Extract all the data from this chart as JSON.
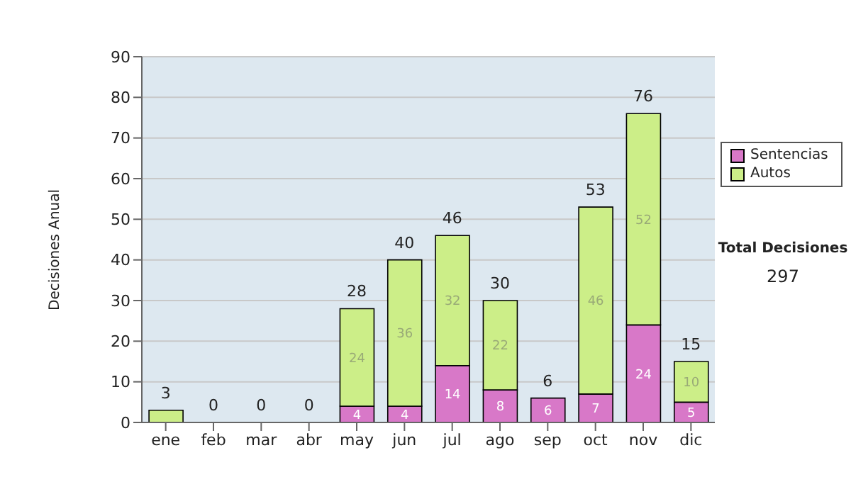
{
  "chart_data": {
    "type": "bar",
    "ylabel": "Decisiones Anual",
    "categories": [
      "ene",
      "feb",
      "mar",
      "abr",
      "may",
      "jun",
      "jul",
      "ago",
      "sep",
      "oct",
      "nov",
      "dic"
    ],
    "stacked": true,
    "series": [
      {
        "name": "Sentencias",
        "color": "#d878c8",
        "values": [
          0,
          0,
          0,
          0,
          4,
          4,
          14,
          8,
          6,
          7,
          24,
          5
        ],
        "value_labels": [
          null,
          null,
          null,
          null,
          "4",
          "4",
          "14",
          "8",
          "6",
          "7",
          "24",
          "5"
        ]
      },
      {
        "name": "Autos",
        "color": "#ccee88",
        "values": [
          3,
          0,
          0,
          0,
          24,
          36,
          32,
          22,
          0,
          46,
          52,
          10
        ],
        "value_labels": [
          null,
          null,
          null,
          null,
          "24",
          "36",
          "32",
          "22",
          null,
          "46",
          "52",
          "10"
        ]
      }
    ],
    "totals": [
      "3",
      "0",
      "0",
      "0",
      "28",
      "40",
      "46",
      "30",
      "6",
      "53",
      "76",
      "15"
    ],
    "ylim": [
      0,
      90
    ],
    "yticks": [
      0,
      10,
      20,
      30,
      40,
      50,
      60,
      70,
      80,
      90
    ],
    "grid": "y",
    "legend": "right",
    "annotations": [
      "Total Decisiones",
      "297"
    ]
  }
}
